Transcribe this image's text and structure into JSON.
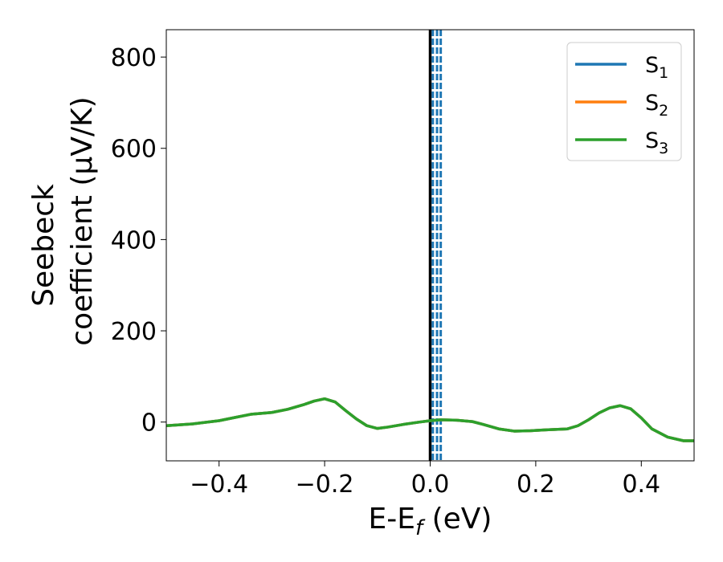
{
  "chart_data": {
    "type": "line",
    "xlabel": "E-E",
    "xlabel_sub": "f",
    "xlabel_unit": " (eV)",
    "ylabel_line1": "Seebeck",
    "ylabel_line2": "coefficient  (μV/K)",
    "xlim": [
      -0.5,
      0.5
    ],
    "ylim": [
      -85,
      860
    ],
    "x_ticks": [
      -0.4,
      -0.2,
      0.0,
      0.2,
      0.4
    ],
    "x_tick_labels": [
      "−0.4",
      "−0.2",
      "0.0",
      "0.2",
      "0.4"
    ],
    "y_ticks": [
      0,
      200,
      400,
      600,
      800
    ],
    "y_tick_labels": [
      "0",
      "200",
      "400",
      "600",
      "800"
    ],
    "grid": false,
    "legend_position": "top-right",
    "series": [
      {
        "name": "S",
        "name_sub": "1",
        "color": "#1f77b4",
        "x": [
          -0.5,
          -0.45,
          -0.4,
          -0.37,
          -0.34,
          -0.3,
          -0.27,
          -0.24,
          -0.22,
          -0.2,
          -0.18,
          -0.16,
          -0.14,
          -0.12,
          -0.1,
          -0.08,
          -0.05,
          -0.02,
          0.0,
          0.02,
          0.05,
          0.08,
          0.1,
          0.13,
          0.16,
          0.19,
          0.22,
          0.26,
          0.28,
          0.3,
          0.32,
          0.34,
          0.36,
          0.38,
          0.4,
          0.42,
          0.45,
          0.48,
          0.5
        ],
        "y": [
          -8,
          -4,
          3,
          10,
          17,
          21,
          28,
          38,
          46,
          51,
          44,
          25,
          7,
          -8,
          -14,
          -11,
          -5,
          0,
          3,
          5,
          4,
          1,
          -5,
          -15,
          -20,
          -19,
          -17,
          -15,
          -8,
          5,
          20,
          31,
          36,
          29,
          9,
          -15,
          -33,
          -41,
          -41
        ]
      },
      {
        "name": "S",
        "name_sub": "2",
        "color": "#ff7f0e",
        "x": [
          -0.5,
          -0.45,
          -0.4,
          -0.37,
          -0.34,
          -0.3,
          -0.27,
          -0.24,
          -0.22,
          -0.2,
          -0.18,
          -0.16,
          -0.14,
          -0.12,
          -0.1,
          -0.08,
          -0.05,
          -0.02,
          0.0,
          0.02,
          0.05,
          0.08,
          0.1,
          0.13,
          0.16,
          0.19,
          0.22,
          0.26,
          0.28,
          0.3,
          0.32,
          0.34,
          0.36,
          0.38,
          0.4,
          0.42,
          0.45,
          0.48,
          0.5
        ],
        "y": [
          -8,
          -4,
          3,
          10,
          17,
          21,
          28,
          38,
          46,
          51,
          44,
          25,
          7,
          -8,
          -14,
          -11,
          -5,
          0,
          3,
          5,
          4,
          1,
          -5,
          -15,
          -20,
          -19,
          -17,
          -15,
          -8,
          5,
          20,
          31,
          36,
          29,
          9,
          -15,
          -33,
          -41,
          -41
        ]
      },
      {
        "name": "S",
        "name_sub": "3",
        "color": "#2ca02c",
        "x": [
          -0.5,
          -0.45,
          -0.4,
          -0.37,
          -0.34,
          -0.3,
          -0.27,
          -0.24,
          -0.22,
          -0.2,
          -0.18,
          -0.16,
          -0.14,
          -0.12,
          -0.1,
          -0.08,
          -0.05,
          -0.02,
          0.0,
          0.02,
          0.05,
          0.08,
          0.1,
          0.13,
          0.16,
          0.19,
          0.22,
          0.26,
          0.28,
          0.3,
          0.32,
          0.34,
          0.36,
          0.38,
          0.4,
          0.42,
          0.45,
          0.48,
          0.5
        ],
        "y": [
          -8,
          -4,
          3,
          10,
          17,
          21,
          28,
          38,
          46,
          51,
          44,
          25,
          7,
          -8,
          -14,
          -11,
          -5,
          0,
          3,
          5,
          4,
          1,
          -5,
          -15,
          -20,
          -19,
          -17,
          -15,
          -8,
          5,
          20,
          31,
          36,
          29,
          9,
          -15,
          -33,
          -41,
          -41
        ]
      }
    ],
    "reference_lines": [
      {
        "x": 0.0,
        "style": "solid",
        "color": "#000000"
      },
      {
        "x": 0.005,
        "style": "dashed",
        "color": "#1f77b4"
      },
      {
        "x": 0.013,
        "style": "dashed",
        "color": "#1f77b4"
      },
      {
        "x": 0.02,
        "style": "dashed",
        "color": "#1f77b4"
      }
    ]
  }
}
